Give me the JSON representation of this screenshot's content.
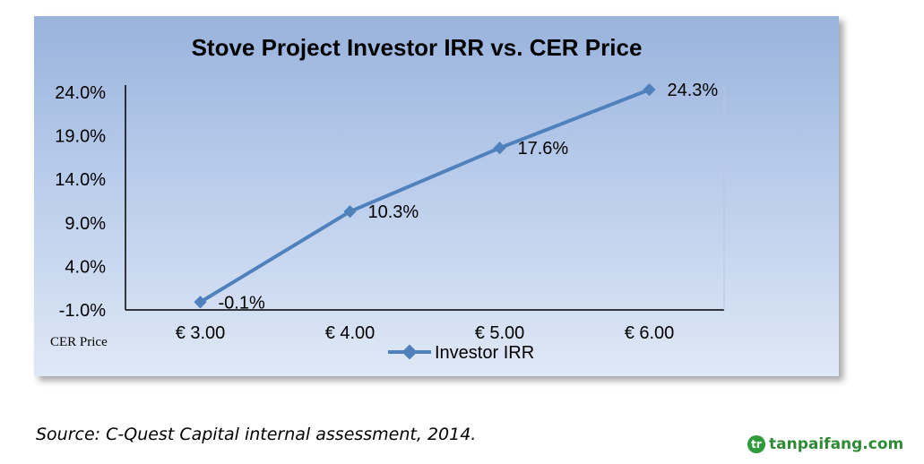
{
  "chart_data": {
    "type": "line",
    "title": "Stove Project Investor IRR vs. CER Price",
    "xlabel": "CER Price",
    "ylabel": "",
    "categories": [
      "€ 3.00",
      "€ 4.00",
      "€ 5.00",
      "€ 6.00"
    ],
    "series": [
      {
        "name": "Investor IRR",
        "values": [
          -0.1,
          10.3,
          17.6,
          24.3
        ],
        "labels": [
          "-0.1%",
          "10.3%",
          "17.6%",
          "24.3%"
        ],
        "color": "#4f81bd"
      }
    ],
    "yticks": [
      "24.0%",
      "19.0%",
      "14.0%",
      "9.0%",
      "4.0%",
      "-1.0%"
    ],
    "ytick_values": [
      24,
      19,
      14,
      9,
      4,
      -1
    ],
    "ylim": [
      -1,
      24
    ],
    "grid": false,
    "legend": "bottom"
  },
  "source": "Source: C-Quest Capital internal assessment, 2014.",
  "watermark": {
    "icon_glyph": "tr",
    "text": "tanpaifang.com"
  }
}
